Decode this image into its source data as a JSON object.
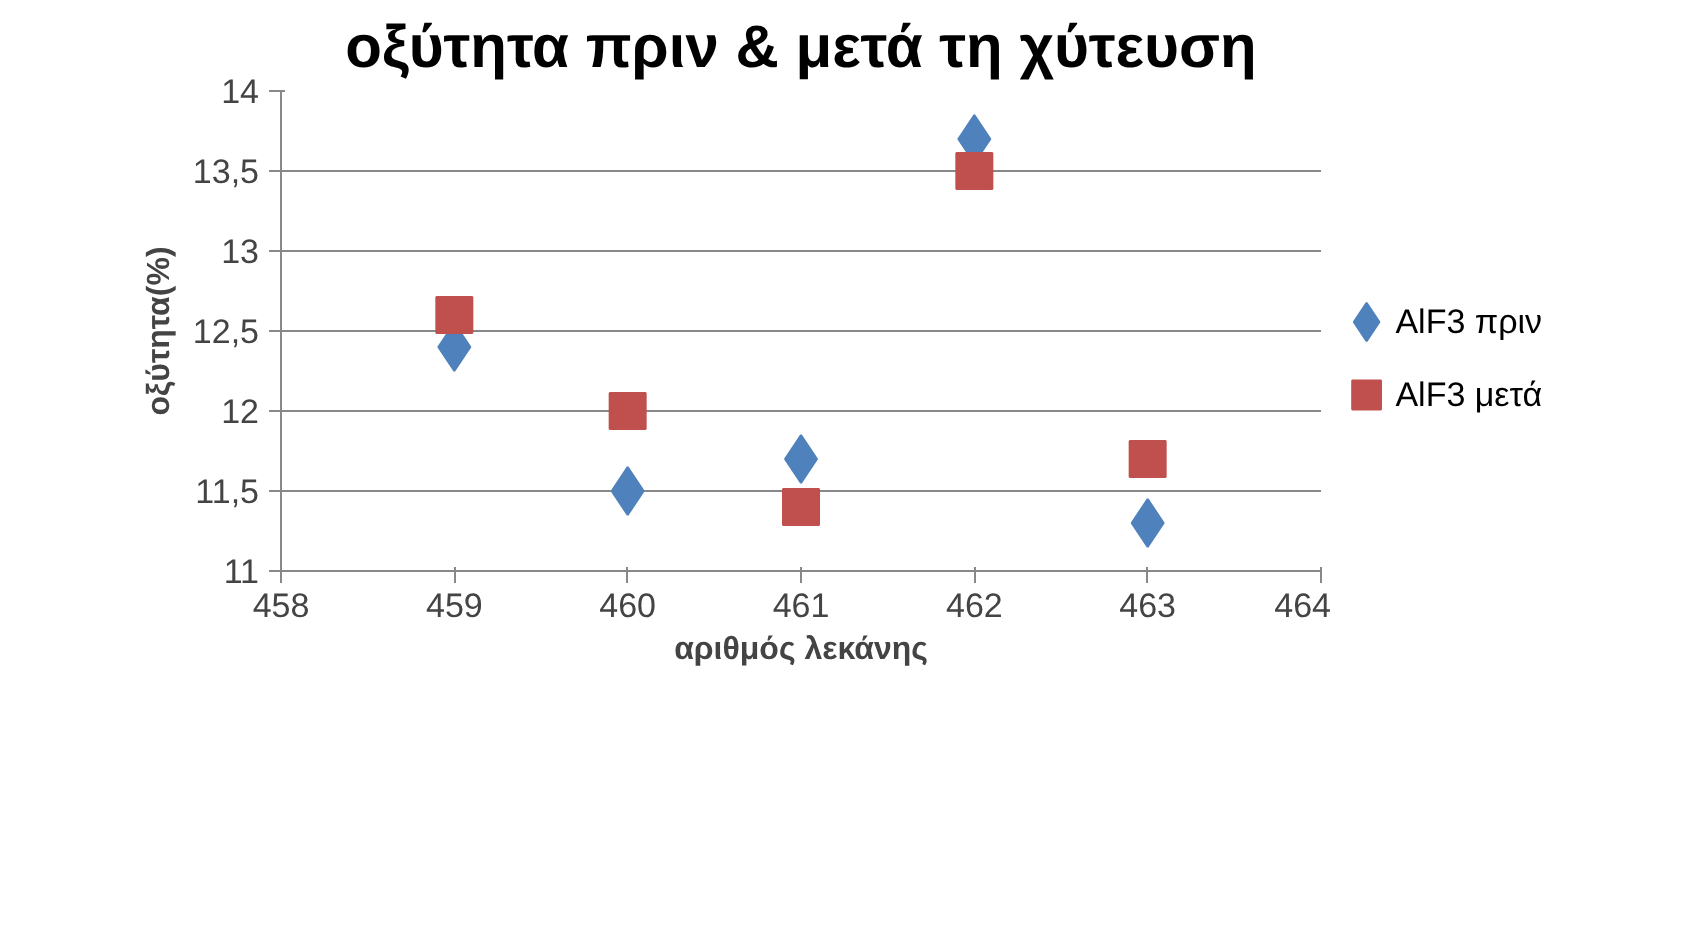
{
  "chart_data": {
    "type": "scatter",
    "title": "οξύτητα πριν & μετά τη χύτευση",
    "xlabel": "αριθμός λεκάνης",
    "ylabel": "οξύτητα(%)",
    "x": [
      459,
      460,
      461,
      462,
      463
    ],
    "series": [
      {
        "name": "AlF3 πριν",
        "color": "#4f81bd",
        "marker": "diamond",
        "values": [
          12.4,
          11.5,
          11.7,
          13.7,
          11.3
        ]
      },
      {
        "name": "AlF3 μετά",
        "color": "#c0504d",
        "marker": "square",
        "values": [
          12.6,
          12.0,
          11.4,
          13.5,
          11.7
        ]
      }
    ],
    "xlim": [
      458,
      464
    ],
    "xticks": [
      458,
      459,
      460,
      461,
      462,
      463,
      464
    ],
    "ylim": [
      11,
      14
    ],
    "yticks": [
      11,
      {
        "value": 11.5,
        "label": "11,5"
      },
      12,
      {
        "value": 12.5,
        "label": "12,5"
      },
      13,
      {
        "value": 13.5,
        "label": "13,5"
      },
      14
    ],
    "grid": "y",
    "legend": "right"
  }
}
